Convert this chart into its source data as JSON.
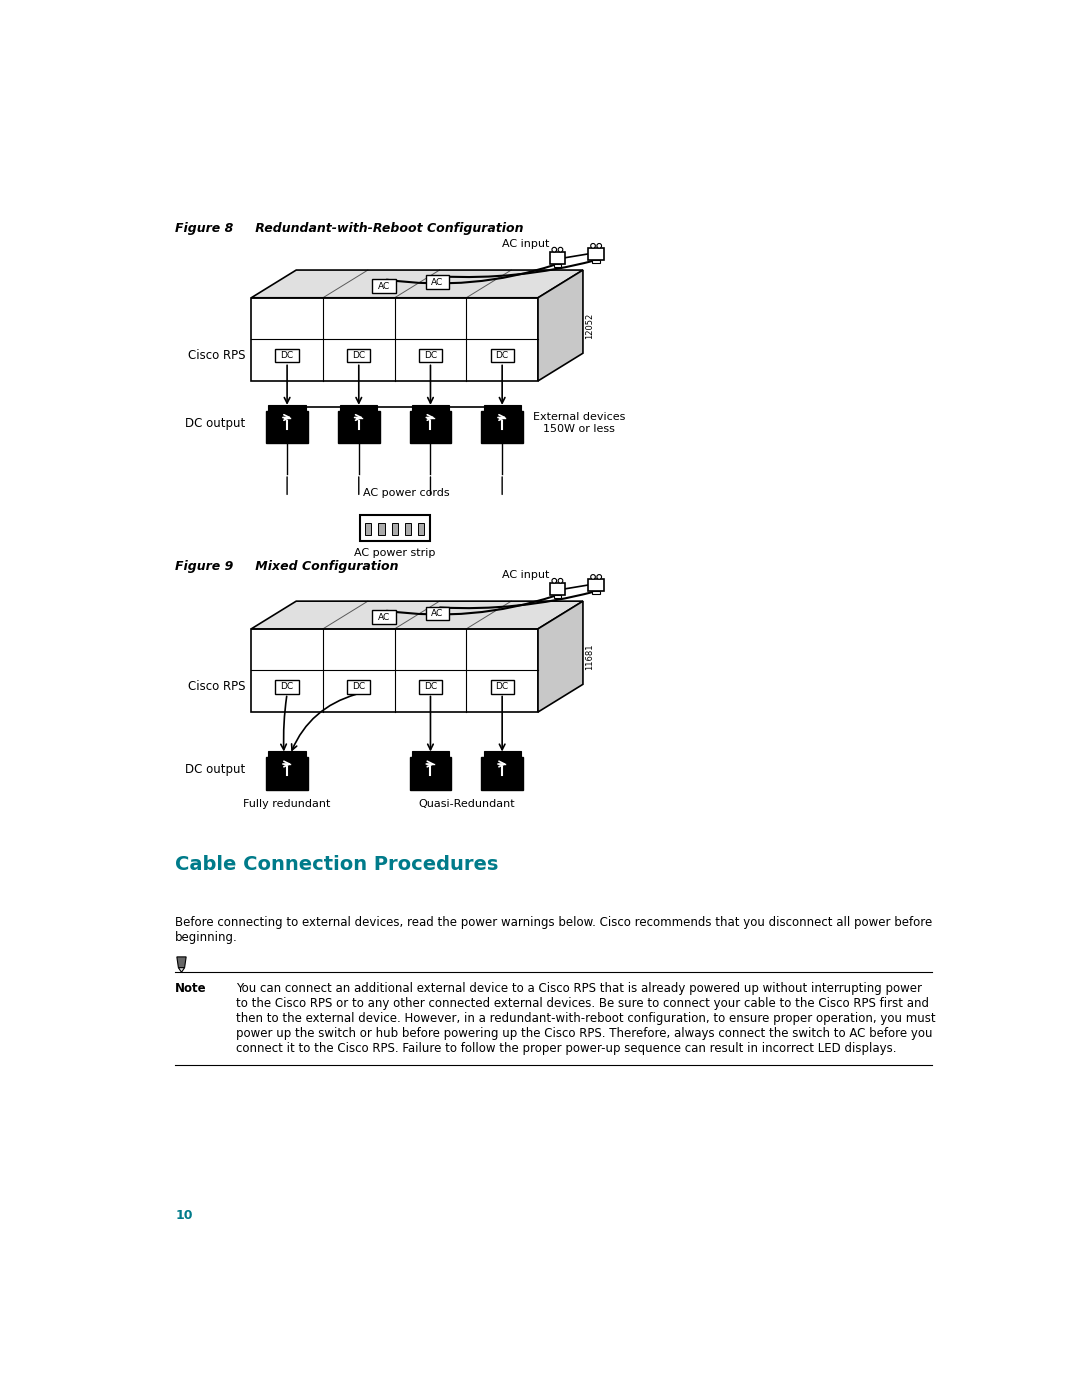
{
  "bg_color": "#ffffff",
  "fig8_title": "Figure 8     Redundant-with-Reboot Configuration",
  "fig9_title": "Figure 9     Mixed Configuration",
  "section_title": "Cable Connection Procedures",
  "body_text": "Before connecting to external devices, read the power warnings below. Cisco recommends that you disconnect all power before\nbeginning.",
  "note_label": "Note",
  "note_text": "You can connect an additional external device to a Cisco RPS that is already powered up without interrupting power\nto the Cisco RPS or to any other connected external devices. Be sure to connect your cable to the Cisco RPS first and\nthen to the external device. However, in a redundant-with-reboot configuration, to ensure proper operation, you must\npower up the switch or hub before powering up the Cisco RPS. Therefore, always connect the switch to AC before you\nconnect it to the Cisco RPS. Failure to follow the proper power-up sequence can result in incorrect LED displays.",
  "page_number": "10",
  "teal_color": "#007B8A",
  "text_color": "#000000",
  "label_cisco_rps": "Cisco RPS",
  "label_dc_output": "DC output",
  "label_ac_input": "AC input",
  "label_ac_power_cords": "AC power cords",
  "label_ac_power_strip": "AC power strip",
  "label_external_devices": "External devices\n150W or less",
  "label_fully_redundant": "Fully redundant",
  "label_quasi_redundant": "Quasi-Redundant",
  "fig_id1": "12052",
  "fig_id2": "11681"
}
